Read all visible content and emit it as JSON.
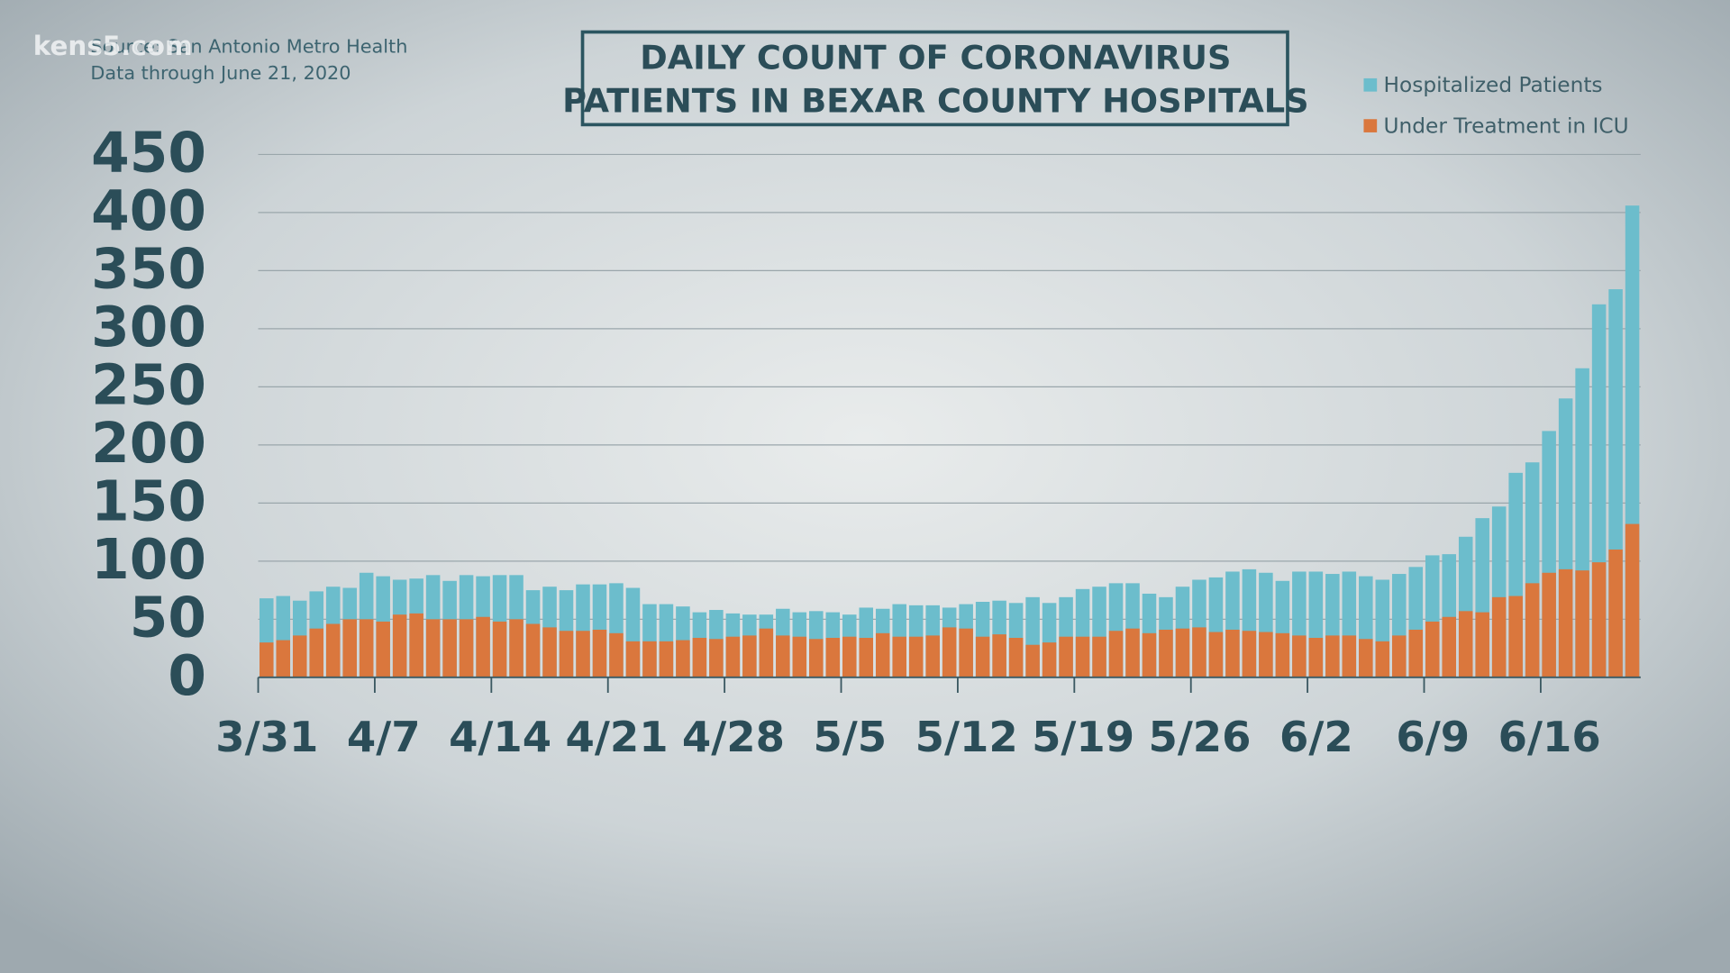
{
  "chart_data": {
    "type": "bar",
    "watermark": "kens5.com",
    "annotations": [
      "Source: San Antonio Metro Health",
      "Data through June 21, 2020"
    ],
    "title": [
      "DAILY COUNT OF CORONAVIRUS",
      "PATIENTS IN BEXAR COUNTY HOSPITALS"
    ],
    "categories": [
      "3/31",
      null,
      null,
      null,
      null,
      null,
      null,
      "4/7",
      null,
      null,
      null,
      null,
      null,
      null,
      "4/14",
      null,
      null,
      null,
      null,
      null,
      null,
      "4/21",
      null,
      null,
      null,
      null,
      null,
      null,
      "4/28",
      null,
      null,
      null,
      null,
      null,
      null,
      "5/5",
      null,
      null,
      null,
      null,
      null,
      null,
      "5/12",
      null,
      null,
      null,
      null,
      null,
      null,
      "5/19",
      null,
      null,
      null,
      null,
      null,
      null,
      "5/26",
      null,
      null,
      null,
      null,
      null,
      null,
      "6/2",
      null,
      null,
      null,
      null,
      null,
      null,
      "6/9",
      null,
      null,
      null,
      null,
      null,
      null,
      "6/16",
      null,
      null,
      null,
      null,
      null
    ],
    "series": [
      {
        "name": "Hospitalized Patients",
        "color": "#6cbdcc",
        "values": [
          68,
          70,
          66,
          74,
          78,
          77,
          90,
          87,
          84,
          85,
          88,
          83,
          88,
          87,
          88,
          88,
          75,
          78,
          75,
          80,
          80,
          81,
          77,
          63,
          63,
          61,
          56,
          58,
          55,
          54,
          54,
          59,
          56,
          57,
          56,
          54,
          60,
          59,
          63,
          62,
          62,
          60,
          63,
          65,
          66,
          64,
          69,
          64,
          69,
          76,
          78,
          81,
          81,
          72,
          69,
          78,
          84,
          86,
          91,
          93,
          90,
          83,
          91,
          91,
          89,
          91,
          87,
          84,
          89,
          95,
          105,
          106,
          121,
          137,
          147,
          176,
          185,
          212,
          240,
          266,
          321,
          334,
          406
        ]
      },
      {
        "name": "Under Treatment in ICU",
        "color": "#da773d",
        "values": [
          30,
          32,
          36,
          42,
          46,
          50,
          50,
          48,
          54,
          55,
          50,
          50,
          50,
          52,
          48,
          50,
          46,
          43,
          40,
          40,
          41,
          38,
          31,
          31,
          31,
          32,
          34,
          33,
          35,
          36,
          42,
          36,
          35,
          33,
          34,
          35,
          34,
          38,
          35,
          35,
          36,
          43,
          42,
          35,
          37,
          34,
          28,
          30,
          35,
          35,
          35,
          40,
          42,
          38,
          41,
          42,
          43,
          39,
          41,
          40,
          39,
          38,
          36,
          34,
          36,
          36,
          33,
          31,
          36,
          41,
          48,
          52,
          57,
          56,
          69,
          70,
          81,
          90,
          93,
          92,
          99,
          110,
          132
        ]
      }
    ],
    "ylim": [
      0,
      450
    ],
    "yticks": [
      0,
      50,
      100,
      150,
      200,
      250,
      300,
      350,
      400,
      450
    ],
    "grid": true,
    "legend": "top-right"
  }
}
